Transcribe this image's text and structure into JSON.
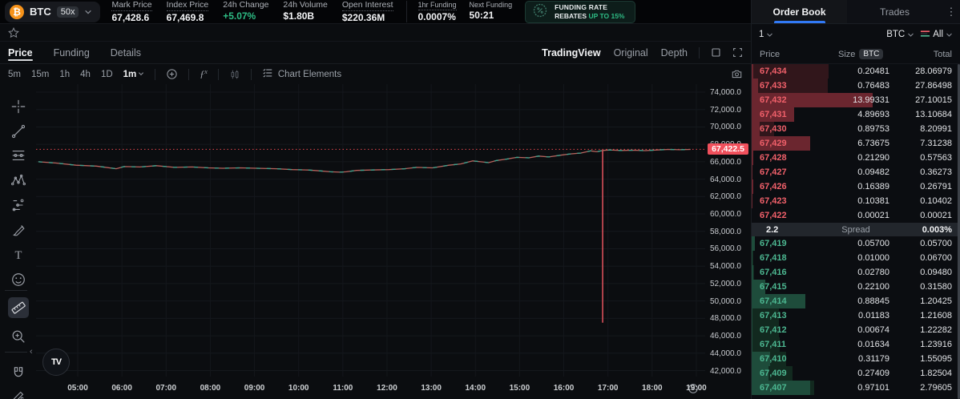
{
  "topbar": {
    "symbol": "BTC",
    "leverage": "50x",
    "stats": [
      {
        "label": "Mark Price",
        "value": "67,428.6",
        "underline": true
      },
      {
        "label": "Index Price",
        "value": "67,469.8",
        "underline": true
      },
      {
        "label": "24h Change",
        "value": "+5.07%",
        "green": true
      },
      {
        "label": "24h Volume",
        "value": "$1.80B"
      },
      {
        "label": "Open Interest",
        "value": "$220.36M",
        "underline": true
      }
    ],
    "funding": [
      {
        "label": "1hr Funding",
        "value": "0.0007%",
        "underline": true
      },
      {
        "label": "Next Funding",
        "value": "50:21"
      }
    ],
    "rebates": {
      "icon": "percent-seal-icon",
      "line1": "FUNDING RATE",
      "line2": "REBATES",
      "highlight": "UP TO 15%"
    },
    "accent_green": "#2ebd85"
  },
  "chart_panel": {
    "tabs": [
      "Price",
      "Funding",
      "Details"
    ],
    "active_tab": "Price",
    "view_modes": [
      "TradingView",
      "Original",
      "Depth"
    ],
    "active_view": "TradingView",
    "timeframes": [
      "5m",
      "15m",
      "1h",
      "4h",
      "1D",
      "1m"
    ],
    "active_timeframe": "1m",
    "chart_elements_label": "Chart Elements",
    "toolbar_icons": [
      "plus-circle-icon",
      "fx-indicator-icon",
      "candle-style-icon"
    ],
    "drawing_tools": [
      "crosshair",
      "trendline",
      "fib-retracement",
      "xabcd-pattern",
      "forecast",
      "brush",
      "text",
      "emoji",
      "ruler",
      "zoom-in",
      "magnet",
      "draw-lock"
    ],
    "selected_tool": "ruler",
    "tv_logo": "TV"
  },
  "chart_data": {
    "type": "line",
    "title": "BTC price 1m",
    "x_axis": [
      "05:00",
      "06:00",
      "07:00",
      "08:00",
      "09:00",
      "10:00",
      "11:00",
      "12:00",
      "13:00",
      "14:00",
      "15:00",
      "16:00",
      "17:00",
      "18:00",
      "19:00"
    ],
    "y_axis": [
      "74,000.0",
      "72,000.0",
      "70,000.0",
      "68,000.0",
      "66,000.0",
      "64,000.0",
      "62,000.0",
      "60,000.0",
      "58,000.0",
      "56,000.0",
      "54,000.0",
      "52,000.0",
      "50,000.0",
      "48,000.0",
      "46,000.0",
      "44,000.0",
      "42,000.0"
    ],
    "y_max": 74000,
    "y_min": 42000,
    "y_step": 2000,
    "current_price": "67,422.5",
    "current_price_value": 67422.5,
    "up_color": "#3da58f",
    "down_color": "#b9655f",
    "current_line_color": "#e5484d",
    "wick": {
      "hour": 16.88,
      "from": 67300,
      "to": 47500
    },
    "points": [
      [
        4.11,
        66000
      ],
      [
        4.51,
        65850
      ],
      [
        4.96,
        65600
      ],
      [
        5.42,
        65500
      ],
      [
        5.87,
        65200
      ],
      [
        6.05,
        65450
      ],
      [
        6.41,
        65400
      ],
      [
        6.78,
        65550
      ],
      [
        7.19,
        65350
      ],
      [
        7.59,
        65400
      ],
      [
        7.96,
        65300
      ],
      [
        8.28,
        65250
      ],
      [
        8.68,
        65300
      ],
      [
        9.04,
        65250
      ],
      [
        9.5,
        65200
      ],
      [
        9.86,
        65100
      ],
      [
        10.22,
        65050
      ],
      [
        10.49,
        64950
      ],
      [
        10.71,
        64850
      ],
      [
        10.95,
        64800
      ],
      [
        11.08,
        64850
      ],
      [
        11.31,
        65000
      ],
      [
        11.62,
        65050
      ],
      [
        12.04,
        65100
      ],
      [
        12.4,
        65200
      ],
      [
        12.67,
        65350
      ],
      [
        13.03,
        65300
      ],
      [
        13.4,
        65600
      ],
      [
        13.67,
        65750
      ],
      [
        13.94,
        66100
      ],
      [
        14.12,
        66000
      ],
      [
        14.3,
        65900
      ],
      [
        14.48,
        66150
      ],
      [
        14.7,
        66300
      ],
      [
        14.94,
        66500
      ],
      [
        15.21,
        66450
      ],
      [
        15.43,
        66650
      ],
      [
        15.66,
        66550
      ],
      [
        15.93,
        66750
      ],
      [
        16.15,
        66900
      ],
      [
        16.39,
        67000
      ],
      [
        16.61,
        67250
      ],
      [
        16.75,
        67150
      ],
      [
        16.88,
        67300
      ],
      [
        17.02,
        67350
      ],
      [
        17.3,
        67300
      ],
      [
        17.57,
        67320
      ],
      [
        17.84,
        67280
      ],
      [
        18.11,
        67350
      ],
      [
        18.38,
        67420
      ],
      [
        18.62,
        67380
      ],
      [
        18.87,
        67420
      ]
    ]
  },
  "order_book": {
    "tabs": [
      "Order Book",
      "Trades"
    ],
    "active_tab": "Order Book",
    "grouping": "1",
    "pair": "BTC",
    "side_filter": "All",
    "headers": {
      "price": "Price",
      "size": "Size",
      "size_unit": "BTC",
      "total": "Total"
    },
    "ask_color": "#f0606a",
    "bid_color": "#4cb690",
    "asks": [
      {
        "price": "67,434",
        "size": "0.20481",
        "total": "28.06979"
      },
      {
        "price": "67,433",
        "size": "0.76483",
        "total": "27.86498"
      },
      {
        "price": "67,432",
        "size": "13.99331",
        "total": "27.10015"
      },
      {
        "price": "67,431",
        "size": "4.89693",
        "total": "13.10684"
      },
      {
        "price": "67,430",
        "size": "0.89753",
        "total": "8.20991"
      },
      {
        "price": "67,429",
        "size": "6.73675",
        "total": "7.31238"
      },
      {
        "price": "67,428",
        "size": "0.21290",
        "total": "0.57563"
      },
      {
        "price": "67,427",
        "size": "0.09482",
        "total": "0.36273"
      },
      {
        "price": "67,426",
        "size": "0.16389",
        "total": "0.26791"
      },
      {
        "price": "67,423",
        "size": "0.10381",
        "total": "0.10402"
      },
      {
        "price": "67,422",
        "size": "0.00021",
        "total": "0.00021"
      }
    ],
    "spread": {
      "value": "2.2",
      "label": "Spread",
      "pct": "0.003%"
    },
    "bids": [
      {
        "price": "67,419",
        "size": "0.05700",
        "total": "0.05700"
      },
      {
        "price": "67,418",
        "size": "0.01000",
        "total": "0.06700"
      },
      {
        "price": "67,416",
        "size": "0.02780",
        "total": "0.09480"
      },
      {
        "price": "67,415",
        "size": "0.22100",
        "total": "0.31580"
      },
      {
        "price": "67,414",
        "size": "0.88845",
        "total": "1.20425"
      },
      {
        "price": "67,413",
        "size": "0.01183",
        "total": "1.21608"
      },
      {
        "price": "67,412",
        "size": "0.00674",
        "total": "1.22282"
      },
      {
        "price": "67,411",
        "size": "0.01634",
        "total": "1.23916"
      },
      {
        "price": "67,410",
        "size": "0.31179",
        "total": "1.55095"
      },
      {
        "price": "67,409",
        "size": "0.27409",
        "total": "1.82504"
      },
      {
        "price": "67,407",
        "size": "0.97101",
        "total": "2.79605"
      }
    ]
  }
}
